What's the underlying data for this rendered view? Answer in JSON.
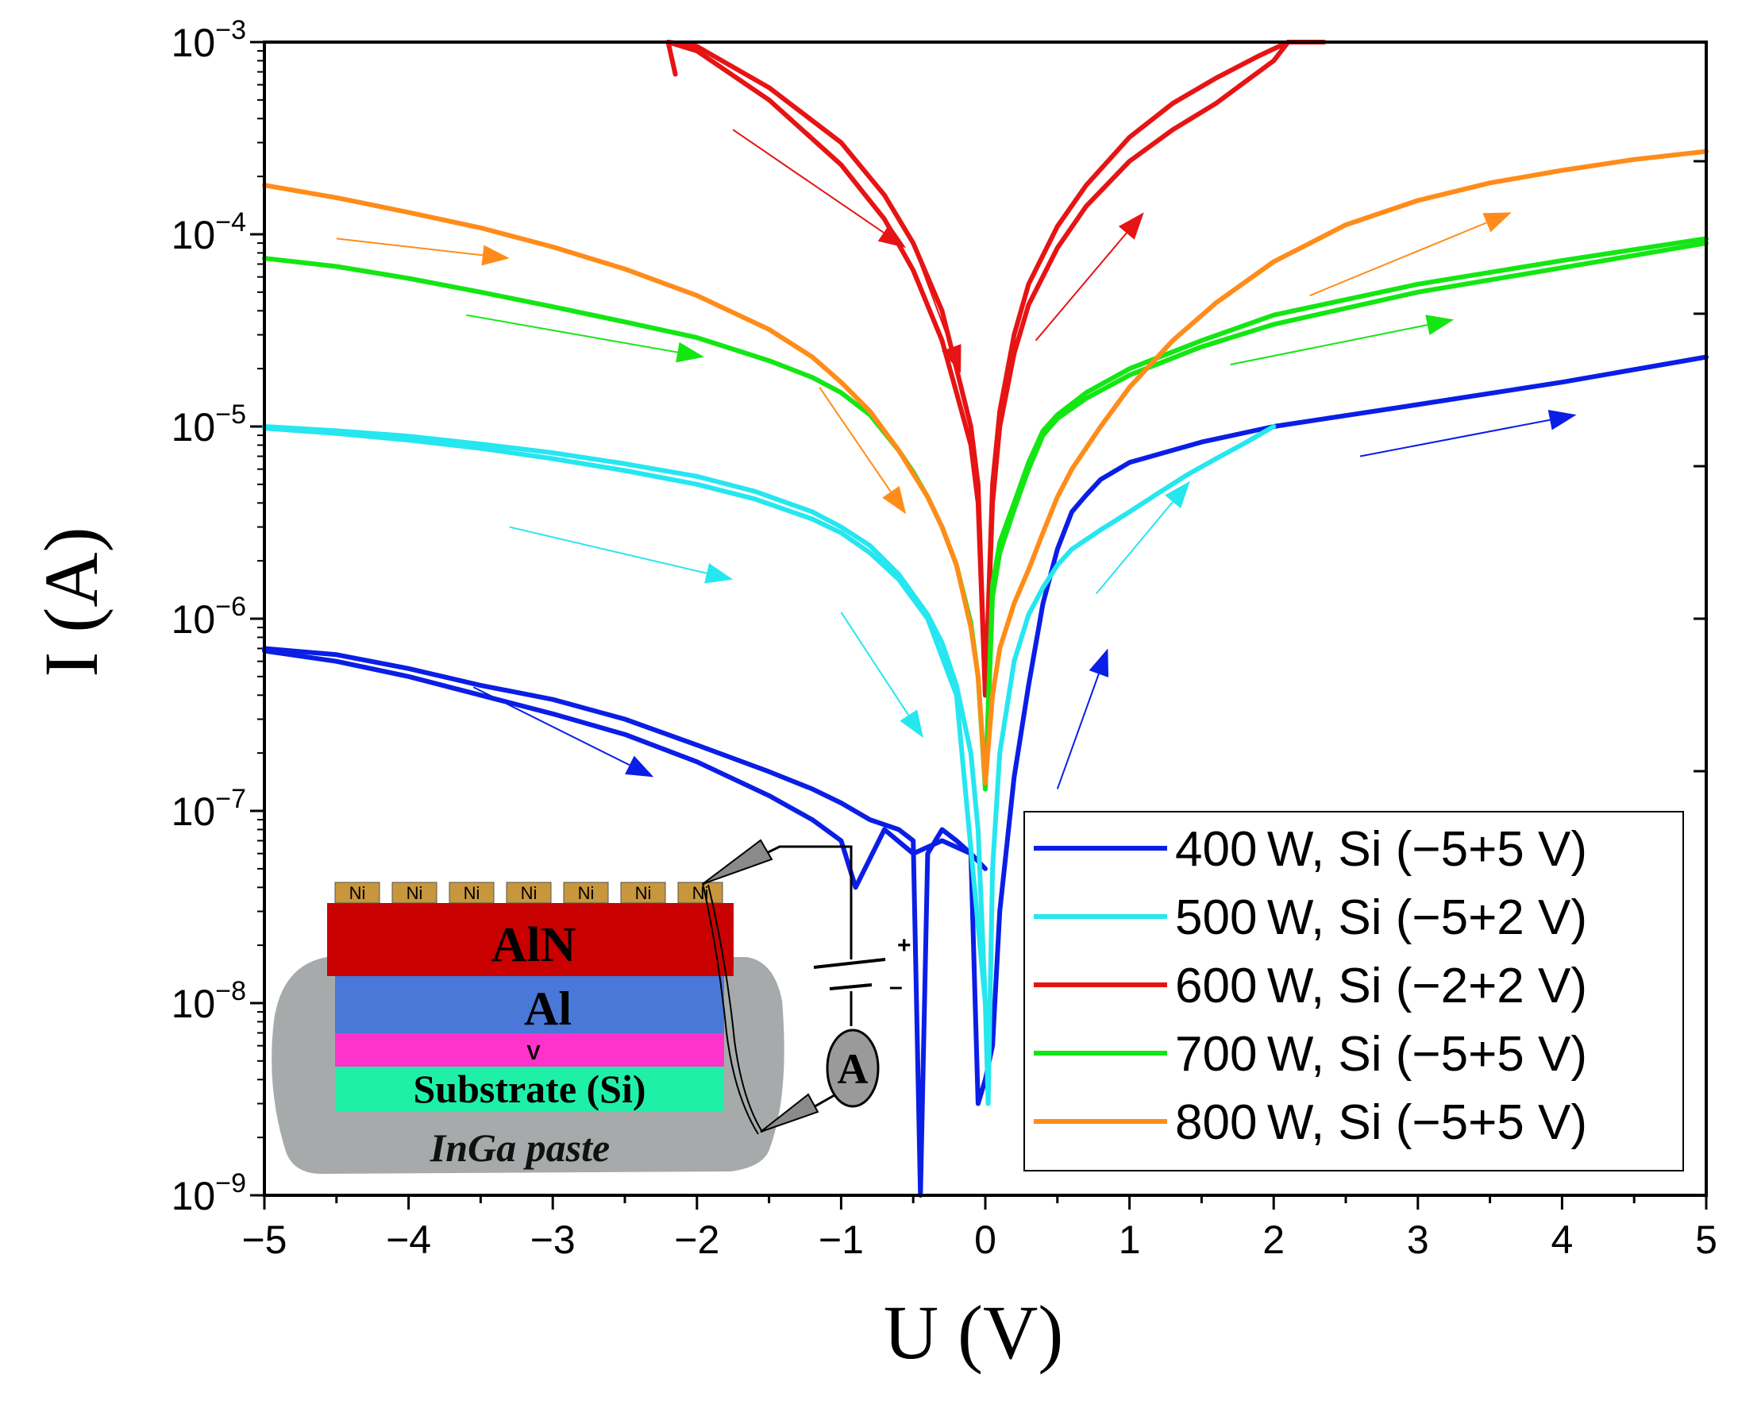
{
  "chart_data": {
    "type": "line",
    "title": "",
    "xlabel": "U (V)",
    "ylabel": "I (A)",
    "xlim": [
      -5,
      5
    ],
    "ylim": [
      1e-09,
      0.001
    ],
    "yscale": "log",
    "x_ticks": [
      -5,
      -4,
      -3,
      -2,
      -1,
      0,
      1,
      2,
      3,
      4,
      5
    ],
    "x_tick_labels": [
      "−5",
      "−4",
      "−3",
      "−2",
      "−1",
      "0",
      "1",
      "2",
      "3",
      "4",
      "5"
    ],
    "y_tick_labels": [
      {
        "base": "10",
        "exp": "−9"
      },
      {
        "base": "10",
        "exp": "−8"
      },
      {
        "base": "10",
        "exp": "−7"
      },
      {
        "base": "10",
        "exp": "−6"
      },
      {
        "base": "10",
        "exp": "−5"
      },
      {
        "base": "10",
        "exp": "−4"
      },
      {
        "base": "10",
        "exp": "−3"
      }
    ],
    "grid": false,
    "legend_position": "bottom-right",
    "series": [
      {
        "name": "400 W, Si (−5+5 V)",
        "color": "#0a1ee6",
        "branches": [
          {
            "x": [
              -5,
              -4.5,
              -4,
              -3.5,
              -3,
              -2.5,
              -2,
              -1.5,
              -1.2,
              -1,
              -0.8,
              -0.6,
              -0.5,
              -0.45,
              -0.4,
              -0.3,
              -0.2,
              -0.1,
              -0.05,
              0,
              0.05
            ],
            "y": [
              7e-07,
              6.5e-07,
              5.5e-07,
              4.5e-07,
              3.8e-07,
              3e-07,
              2.2e-07,
              1.6e-07,
              1.3e-07,
              1.1e-07,
              9e-08,
              8e-08,
              7e-08,
              1e-09,
              6e-08,
              8e-08,
              7e-08,
              6e-08,
              3e-09,
              4e-09,
              6e-09
            ]
          },
          {
            "x": [
              -5,
              -4.5,
              -4,
              -3.5,
              -3,
              -2.5,
              -2,
              -1.5,
              -1.2,
              -1,
              -0.9,
              -0.7,
              -0.5,
              -0.3,
              -0.1,
              0
            ],
            "y": [
              6.8e-07,
              6e-07,
              5e-07,
              4e-07,
              3.2e-07,
              2.5e-07,
              1.8e-07,
              1.2e-07,
              9e-08,
              7e-08,
              4e-08,
              8e-08,
              6e-08,
              7e-08,
              6e-08,
              5e-08
            ]
          },
          {
            "x": [
              0.05,
              0.1,
              0.2,
              0.3,
              0.4,
              0.5,
              0.6,
              0.7,
              0.8,
              1,
              1.5,
              2,
              3,
              4,
              5
            ],
            "y": [
              6e-09,
              3e-08,
              1.5e-07,
              4.5e-07,
              1.2e-06,
              2.3e-06,
              3.6e-06,
              4.4e-06,
              5.3e-06,
              6.5e-06,
              8.3e-06,
              1e-05,
              1.3e-05,
              1.7e-05,
              2.3e-05
            ]
          }
        ]
      },
      {
        "name": "500 W, Si (−5+2 V)",
        "color": "#26e6f0",
        "branches": [
          {
            "x": [
              -5,
              -4.5,
              -4,
              -3.5,
              -3,
              -2.5,
              -2,
              -1.6,
              -1.2,
              -1,
              -0.8,
              -0.6,
              -0.4,
              -0.3,
              -0.2,
              -0.1,
              -0.05,
              0,
              0.02
            ],
            "y": [
              1e-05,
              9.5e-06,
              8.9e-06,
              8.1e-06,
              7.3e-06,
              6.4e-06,
              5.5e-06,
              4.6e-06,
              3.6e-06,
              3e-06,
              2.4e-06,
              1.7e-06,
              1.05e-06,
              7.5e-07,
              4.5e-07,
              2e-07,
              8e-08,
              1e-08,
              3e-09
            ]
          },
          {
            "x": [
              -5,
              -4.5,
              -4,
              -3.5,
              -3,
              -2.5,
              -2,
              -1.6,
              -1.2,
              -1,
              -0.8,
              -0.6,
              -0.4,
              -0.2,
              0
            ],
            "y": [
              9.8e-06,
              9.2e-06,
              8.5e-06,
              7.7e-06,
              6.8e-06,
              5.9e-06,
              5e-06,
              4.2e-06,
              3.3e-06,
              2.8e-06,
              2.2e-06,
              1.6e-06,
              1e-06,
              4e-07,
              1e-08
            ]
          },
          {
            "x": [
              0.02,
              0.05,
              0.1,
              0.2,
              0.3,
              0.4,
              0.5,
              0.6,
              0.8,
              1,
              1.2,
              1.4,
              1.6,
              1.8,
              2
            ],
            "y": [
              3e-09,
              5e-08,
              2e-07,
              6e-07,
              1.05e-06,
              1.45e-06,
              1.9e-06,
              2.3e-06,
              2.9e-06,
              3.6e-06,
              4.5e-06,
              5.6e-06,
              6.8e-06,
              8.2e-06,
              1e-05
            ]
          }
        ]
      },
      {
        "name": "600 W, Si (−2+2 V)",
        "color": "#e61414",
        "branches": [
          {
            "x": [
              -2.15,
              -2.2,
              -2.0,
              -1.5,
              -1.0,
              -0.7,
              -0.5,
              -0.3,
              -0.2,
              -0.1,
              -0.05,
              0
            ],
            "y": [
              0.00068,
              0.001,
              0.00095,
              0.00058,
              0.0003,
              0.00016,
              9e-05,
              4e-05,
              2e-05,
              1e-05,
              5e-06,
              4e-07
            ]
          },
          {
            "x": [
              -2.2,
              -2.0,
              -1.5,
              -1.0,
              -0.7,
              -0.5,
              -0.3,
              -0.2,
              -0.1,
              -0.05,
              0
            ],
            "y": [
              0.001,
              0.0009,
              0.0005,
              0.00023,
              0.00012,
              6.5e-05,
              2.8e-05,
              1.5e-05,
              8e-06,
              4e-06,
              4e-07
            ]
          },
          {
            "x": [
              0,
              0.05,
              0.1,
              0.2,
              0.3,
              0.5,
              0.7,
              1.0,
              1.3,
              1.6,
              1.9,
              2.1,
              2.35
            ],
            "y": [
              4e-07,
              5e-06,
              1.2e-05,
              3e-05,
              5.5e-05,
              0.00011,
              0.00018,
              0.00032,
              0.00048,
              0.00065,
              0.00085,
              0.001,
              0.001
            ]
          },
          {
            "x": [
              0,
              0.05,
              0.1,
              0.2,
              0.3,
              0.5,
              0.7,
              1.0,
              1.3,
              1.6,
              1.8,
              2.0,
              2.1
            ],
            "y": [
              4e-07,
              4e-06,
              1e-05,
              2.4e-05,
              4.3e-05,
              8.5e-05,
              0.00014,
              0.00024,
              0.00035,
              0.00048,
              0.00062,
              0.0008,
              0.001
            ]
          }
        ]
      },
      {
        "name": "700 W, Si (−5+5 V)",
        "color": "#14e614",
        "branches": [
          {
            "x": [
              -5,
              -4.5,
              -4,
              -3.5,
              -3,
              -2.5,
              -2,
              -1.5,
              -1.2,
              -1,
              -0.8,
              -0.6,
              -0.5,
              -0.4,
              -0.3,
              -0.2,
              -0.1,
              -0.05,
              0
            ],
            "y": [
              7.5e-05,
              6.8e-05,
              5.9e-05,
              5e-05,
              4.2e-05,
              3.5e-05,
              2.9e-05,
              2.2e-05,
              1.8e-05,
              1.5e-05,
              1.15e-05,
              7.5e-06,
              5.8e-06,
              4.3e-06,
              3e-06,
              1.9e-06,
              9.5e-07,
              5e-07,
              1.3e-07
            ]
          },
          {
            "x": [
              0,
              0.05,
              0.1,
              0.2,
              0.3,
              0.4,
              0.5,
              0.7,
              1.0,
              1.5,
              2.0,
              3.0,
              4.0,
              5.0
            ],
            "y": [
              1.3e-07,
              1.5e-06,
              2.5e-06,
              4e-06,
              6.5e-06,
              9.5e-06,
              1.15e-05,
              1.5e-05,
              2e-05,
              2.8e-05,
              3.8e-05,
              5.5e-05,
              7.3e-05,
              9.5e-05
            ]
          },
          {
            "x": [
              0,
              0.05,
              0.1,
              0.2,
              0.3,
              0.4,
              0.5,
              0.7,
              1.0,
              1.5,
              2.0,
              3.0,
              4.0,
              5.0
            ],
            "y": [
              1.3e-07,
              1.3e-06,
              2.2e-06,
              3.7e-06,
              6e-06,
              9e-06,
              1.1e-05,
              1.4e-05,
              1.85e-05,
              2.6e-05,
              3.4e-05,
              5e-05,
              6.7e-05,
              9e-05
            ]
          }
        ]
      },
      {
        "name": "800 W, Si (−5+5 V)",
        "color": "#ff8c1a",
        "branches": [
          {
            "x": [
              -5,
              -4.5,
              -4,
              -3.5,
              -3,
              -2.5,
              -2,
              -1.5,
              -1.2,
              -1,
              -0.8,
              -0.6,
              -0.4,
              -0.3,
              -0.2,
              -0.1,
              -0.05,
              0
            ],
            "y": [
              0.00018,
              0.000155,
              0.00013,
              0.000108,
              8.6e-05,
              6.6e-05,
              4.8e-05,
              3.2e-05,
              2.3e-05,
              1.7e-05,
              1.2e-05,
              7.5e-06,
              4.3e-06,
              3e-06,
              1.9e-06,
              9e-07,
              5e-07,
              1.4e-07
            ]
          },
          {
            "x": [
              0,
              0.05,
              0.1,
              0.2,
              0.3,
              0.4,
              0.5,
              0.6,
              0.8,
              1.0,
              1.3,
              1.6,
              2.0,
              2.5,
              3.0,
              3.5,
              4.0,
              4.5,
              5.0
            ],
            "y": [
              1.4e-07,
              4e-07,
              7e-07,
              1.2e-06,
              1.8e-06,
              2.8e-06,
              4.3e-06,
              6e-06,
              1e-05,
              1.6e-05,
              2.8e-05,
              4.4e-05,
              7.2e-05,
              0.000112,
              0.00015,
              0.000185,
              0.000215,
              0.000245,
              0.00027
            ]
          }
        ]
      }
    ],
    "arrows": [
      {
        "color": "#e61414",
        "from": [
          -1.75,
          0.00035
        ],
        "to": [
          -0.55,
          8.5e-05
        ]
      },
      {
        "color": "#e61414",
        "from": [
          -0.45,
          7e-05
        ],
        "to": [
          -0.17,
          1.9e-05
        ]
      },
      {
        "color": "#e61414",
        "from": [
          0.35,
          2.8e-05
        ],
        "to": [
          1.1,
          0.00013
        ]
      },
      {
        "color": "#ff8c1a",
        "from": [
          -4.5,
          9.5e-05
        ],
        "to": [
          -3.3,
          7.5e-05
        ]
      },
      {
        "color": "#ff8c1a",
        "from": [
          -1.15,
          1.6e-05
        ],
        "to": [
          -0.55,
          3.5e-06
        ]
      },
      {
        "color": "#ff8c1a",
        "from": [
          2.25,
          4.8e-05
        ],
        "to": [
          3.65,
          0.00013
        ]
      },
      {
        "color": "#14e614",
        "from": [
          -3.6,
          3.8e-05
        ],
        "to": [
          -1.95,
          2.3e-05
        ]
      },
      {
        "color": "#14e614",
        "from": [
          1.7,
          2.1e-05
        ],
        "to": [
          3.25,
          3.6e-05
        ]
      },
      {
        "color": "#26e6f0",
        "from": [
          -3.3,
          3e-06
        ],
        "to": [
          -1.75,
          1.6e-06
        ]
      },
      {
        "color": "#26e6f0",
        "from": [
          -1.0,
          1.08e-06
        ],
        "to": [
          -0.43,
          2.4e-07
        ]
      },
      {
        "color": "#26e6f0",
        "from": [
          0.77,
          1.35e-06
        ],
        "to": [
          1.42,
          5.2e-06
        ]
      },
      {
        "color": "#0a1ee6",
        "from": [
          -3.55,
          4.4e-07
        ],
        "to": [
          -2.3,
          1.5e-07
        ]
      },
      {
        "color": "#0a1ee6",
        "from": [
          0.5,
          1.3e-07
        ],
        "to": [
          0.85,
          7e-07
        ]
      },
      {
        "color": "#0a1ee6",
        "from": [
          2.6,
          7e-06
        ],
        "to": [
          4.1,
          1.15e-05
        ]
      }
    ]
  },
  "inset": {
    "electrode_label": "Ni",
    "electrode_count": 7,
    "layers": [
      {
        "label": "AlN",
        "color": "#c80000"
      },
      {
        "label": "Al",
        "color": "#4a78d8"
      },
      {
        "label": "V",
        "color": "#ff33cc"
      },
      {
        "label": "Substrate (Si)",
        "color": "#1ff0a8"
      }
    ],
    "paste_label": "InGa paste",
    "paste_color": "#a7aaaa",
    "electrode_color": "#c8963c",
    "ammeter_label": "A",
    "battery_plus": "+",
    "battery_minus": "–"
  }
}
